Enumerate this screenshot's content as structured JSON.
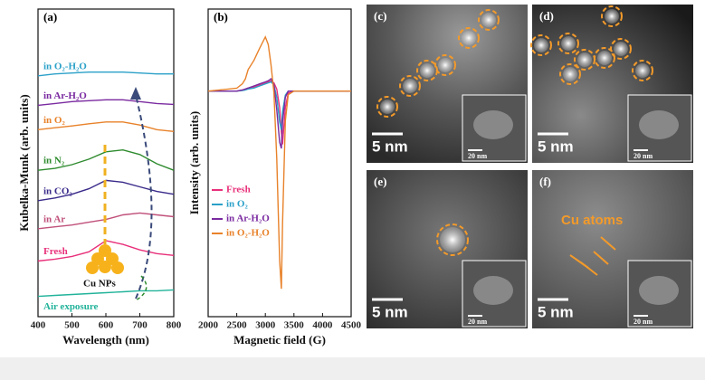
{
  "chart_data": [
    {
      "type": "line",
      "panel": "(a)",
      "xlabel": "Wavelength (nm)",
      "ylabel": "Kubelka-Munk (arb. units)",
      "x": [
        400,
        450,
        500,
        550,
        600,
        650,
        700,
        750,
        800
      ],
      "xlim": [
        400,
        800
      ],
      "xticks": [
        400,
        500,
        600,
        700,
        800
      ],
      "ylim": [
        0,
        10
      ],
      "annotation": "Cu NPs",
      "series": [
        {
          "name": "Air exposure",
          "color": "#22b39a",
          "values": [
            0.66,
            0.69,
            0.72,
            0.75,
            0.78,
            0.81,
            0.84,
            0.84,
            0.87
          ]
        },
        {
          "name": "Fresh",
          "color": "#e8307a",
          "values": [
            1.81,
            1.87,
            1.96,
            2.11,
            2.47,
            2.35,
            2.17,
            2.05,
            1.99
          ]
        },
        {
          "name": "in Ar",
          "color": "#c0507a",
          "values": [
            2.86,
            2.92,
            2.98,
            3.07,
            3.16,
            3.31,
            3.37,
            3.31,
            3.25
          ]
        },
        {
          "name": "in CO₂",
          "color": "#3a2a8a",
          "values": [
            3.77,
            3.86,
            3.98,
            4.16,
            4.43,
            4.37,
            4.22,
            4.07,
            3.98
          ]
        },
        {
          "name": "in N₂",
          "color": "#2e8b2e",
          "values": [
            4.76,
            4.82,
            4.94,
            5.12,
            5.36,
            5.42,
            5.27,
            4.97,
            4.76
          ]
        },
        {
          "name": "in O₂",
          "color": "#e8822a",
          "values": [
            6.08,
            6.14,
            6.2,
            6.27,
            6.33,
            6.33,
            6.23,
            6.08,
            6.02
          ]
        },
        {
          "name": "in Ar-H₂O",
          "color": "#7a2aa0",
          "values": [
            6.87,
            6.93,
            6.99,
            7.02,
            7.05,
            7.05,
            6.99,
            6.93,
            6.9
          ]
        },
        {
          "name": "in O₂-H₂O",
          "color": "#2aa0c8",
          "values": [
            7.83,
            7.89,
            7.92,
            7.95,
            7.95,
            7.95,
            7.92,
            7.89,
            7.89
          ]
        }
      ]
    },
    {
      "type": "line",
      "panel": "(b)",
      "xlabel": "Magnetic field (G)",
      "ylabel": "Intensity (arb. units)",
      "x": [
        2000,
        2500,
        2600,
        2650,
        2700,
        2800,
        2900,
        3000,
        3050,
        3100,
        3150,
        3200,
        3250,
        3280,
        3300,
        3350,
        3400,
        3500,
        4000,
        4500
      ],
      "xlim": [
        2000,
        4500
      ],
      "xticks": [
        2000,
        2500,
        3000,
        3500,
        4000,
        4500
      ],
      "ylim": [
        -11,
        4
      ],
      "series": [
        {
          "name": "Fresh",
          "color": "#e8307a",
          "values": [
            0,
            0,
            0.05,
            0.1,
            0.15,
            0.2,
            0.3,
            0.4,
            0.45,
            0.5,
            0.4,
            0.1,
            -0.8,
            -2.0,
            -2.6,
            -0.8,
            -0.1,
            0,
            0,
            0
          ]
        },
        {
          "name": "in O₂",
          "color": "#2aa0c8",
          "values": [
            0,
            0,
            0.03,
            0.05,
            0.1,
            0.15,
            0.25,
            0.35,
            0.4,
            0.45,
            0.3,
            -0.3,
            -1.5,
            -1.9,
            -1.0,
            -0.2,
            0,
            0,
            0,
            0
          ]
        },
        {
          "name": "in Ar-H₂O",
          "color": "#7a2aa0",
          "values": [
            0,
            0,
            0.05,
            0.1,
            0.15,
            0.25,
            0.35,
            0.45,
            0.5,
            0.6,
            0.3,
            -0.9,
            -2.5,
            -2.8,
            -1.5,
            -0.3,
            0,
            0,
            0,
            0
          ]
        },
        {
          "name": "in O₂-H₂O",
          "color": "#e8822a",
          "values": [
            0,
            0.14,
            0.36,
            0.59,
            1.05,
            1.5,
            2.09,
            2.64,
            2.27,
            1.27,
            -0.09,
            -3.27,
            -8.27,
            -9.64,
            -6.45,
            -1.45,
            -0.18,
            0,
            0,
            0
          ]
        }
      ]
    }
  ],
  "panels": [
    {
      "label": "(c)",
      "scale": "5 nm",
      "inset_scale": "20 nm"
    },
    {
      "label": "(d)",
      "scale": "5 nm",
      "inset_scale": "20 nm"
    },
    {
      "label": "(e)",
      "scale": "5 nm",
      "inset_scale": "20 nm"
    },
    {
      "label": "(f)",
      "scale": "5 nm",
      "inset_scale": "20 nm",
      "annotation": "Cu atoms"
    }
  ]
}
